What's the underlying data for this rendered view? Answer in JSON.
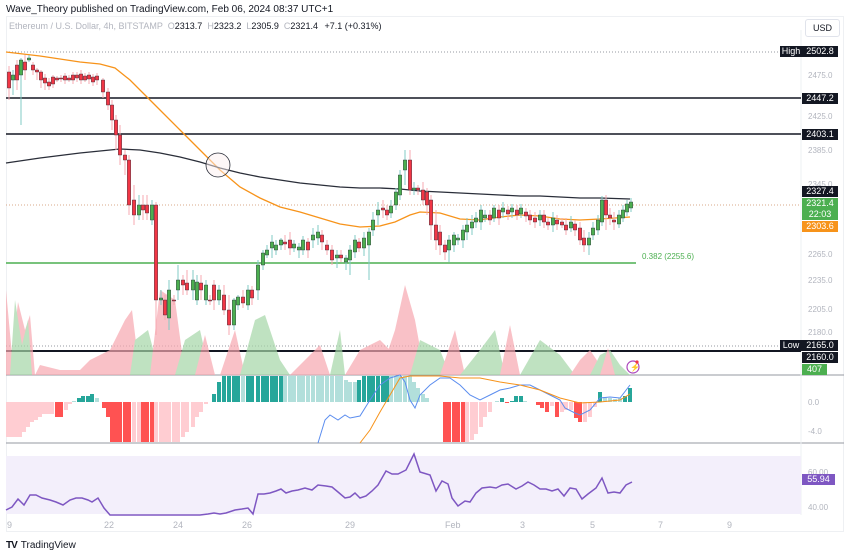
{
  "header": {
    "published": "Wave_Theory published on TradingView.com, Feb 06, 2024 08:37 UTC+1"
  },
  "legend": {
    "symbol": "Ethereum / U.S. Dollar, 4h, BITSTAMP",
    "o_label": "O",
    "o": "2313.7",
    "h_label": "H",
    "h": "2323.2",
    "l_label": "L",
    "l": "2305.9",
    "c_label": "C",
    "c": "2321.4",
    "change": "+7.1 (+0.31%)"
  },
  "currency_button": "USD",
  "price_axis": {
    "ticks": [
      "2475.0",
      "2425.0",
      "2385.0",
      "2345.0",
      "2265.0",
      "2235.0",
      "2205.0",
      "2180.0"
    ]
  },
  "price_tags": {
    "high_label": "High",
    "high_value": "2502.8",
    "level_2447": "2447.2",
    "level_2403": "2403.1",
    "sma200": "2327.4",
    "last_price": "2321.4",
    "countdown": "22:03",
    "ema50": "2303.6",
    "low_label": "Low",
    "low_value": "2165.0",
    "level_2160": "2160.0",
    "volume": "407"
  },
  "fib_label": "0.382 (2255.6)",
  "macd_axis": {
    "ticks": [
      "0.0",
      "-4.0"
    ]
  },
  "rsi": {
    "value": "55.94",
    "ticks": [
      "60.00",
      "40.00"
    ]
  },
  "time_axis": {
    "labels": [
      {
        "text": "9",
        "x": 7
      },
      {
        "text": "22",
        "x": 104
      },
      {
        "text": "24",
        "x": 173
      },
      {
        "text": "26",
        "x": 242
      },
      {
        "text": "29",
        "x": 345
      },
      {
        "text": "Feb",
        "x": 445
      },
      {
        "text": "3",
        "x": 520
      },
      {
        "text": "5",
        "x": 590
      },
      {
        "text": "7",
        "x": 658
      },
      {
        "text": "9",
        "x": 727
      }
    ]
  },
  "footer": {
    "brand": "TradingView",
    "logo": "TV"
  },
  "colors": {
    "up": "#4caf50",
    "down": "#f23645",
    "ema": "#f7931a",
    "sma": "#2a2e39",
    "fib": "#4caf50",
    "rsi": "#7e57c2",
    "macd_pos": "#26a69a",
    "macd_neg": "#ff5252"
  },
  "chart_data": {
    "type": "candlestick",
    "title": "Ethereum / U.S. Dollar, 4h, BITSTAMP",
    "ohlc_last": {
      "open": 2313.7,
      "high": 2323.2,
      "low": 2305.9,
      "close": 2321.4,
      "change": 7.1,
      "change_pct": 0.31
    },
    "x_labels": [
      "9",
      "22",
      "24",
      "26",
      "29",
      "Feb",
      "3",
      "5",
      "7",
      "9"
    ],
    "y_ticks": [
      2475.0,
      2425.0,
      2385.0,
      2345.0,
      2265.0,
      2235.0,
      2205.0,
      2180.0
    ],
    "ylim": [
      2160,
      2510
    ],
    "horizontal_levels": [
      {
        "label": "High",
        "value": 2502.8,
        "style": "dotted"
      },
      {
        "value": 2447.2,
        "style": "solid"
      },
      {
        "value": 2403.1,
        "style": "solid"
      },
      {
        "label": "Fib 0.382",
        "value": 2255.6,
        "style": "solid",
        "color": "#4caf50"
      },
      {
        "label": "Low",
        "value": 2165.0,
        "style": "dotted"
      },
      {
        "value": 2160.0,
        "style": "solid"
      }
    ],
    "indicators": {
      "sma200_last": 2327.4,
      "ema50_last": 2303.6,
      "volume_last": 407,
      "macd_axis": [
        0.0,
        -4.0
      ],
      "rsi_last": 55.94,
      "rsi_axis": [
        60.0,
        40.0
      ]
    },
    "annotations": [
      "circle marking EMA50/SMA200 death cross near x=24-25 Jan"
    ]
  }
}
